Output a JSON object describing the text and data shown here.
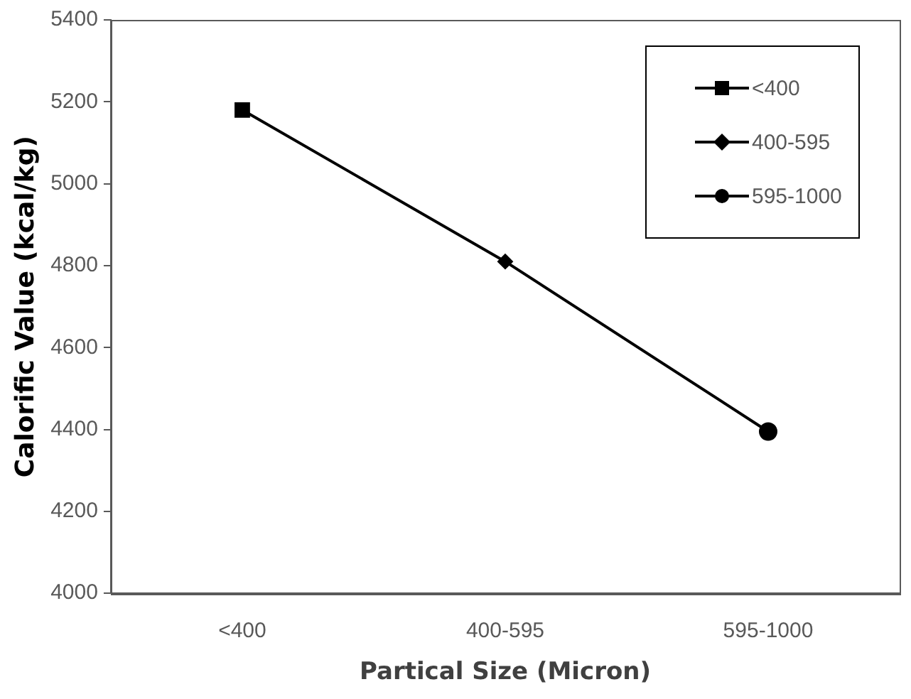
{
  "chart_data": {
    "type": "line",
    "xlabel": "Partical Size (Micron)",
    "ylabel": "Calorific Value (kcal/kg)",
    "categories": [
      "<400",
      "400-595",
      "595-1000"
    ],
    "ylim": [
      4000,
      5400
    ],
    "yticks": [
      4000,
      4200,
      4400,
      4600,
      4800,
      5000,
      5200,
      5400
    ],
    "legend": "top right",
    "series": [
      {
        "color": "#000000",
        "marker": "none",
        "values": [
          5180,
          4810,
          4395
        ]
      },
      {
        "name": "<400",
        "type": "scatter",
        "color": "#000000",
        "marker": "square",
        "values": [
          5180,
          null,
          null
        ]
      },
      {
        "name": "400-595",
        "type": "scatter",
        "color": "#000000",
        "marker": "diamond",
        "values": [
          null,
          4810,
          null
        ]
      },
      {
        "name": "595-1000",
        "type": "scatter",
        "color": "#000000",
        "marker": "circle",
        "values": [
          null,
          null,
          4395
        ]
      }
    ]
  }
}
